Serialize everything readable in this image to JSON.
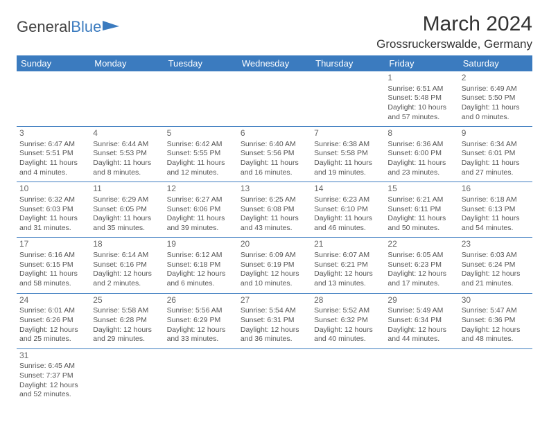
{
  "logo": {
    "text1": "General",
    "text2": "Blue"
  },
  "title": "March 2024",
  "location": "Grossruckerswalde, Germany",
  "colors": {
    "header_bg": "#3b7bbf",
    "header_fg": "#ffffff",
    "border": "#3b7bbf",
    "text": "#555555",
    "title": "#333333",
    "background": "#ffffff"
  },
  "weekdays": [
    "Sunday",
    "Monday",
    "Tuesday",
    "Wednesday",
    "Thursday",
    "Friday",
    "Saturday"
  ],
  "weeks": [
    [
      null,
      null,
      null,
      null,
      null,
      {
        "d": "1",
        "sr": "Sunrise: 6:51 AM",
        "ss": "Sunset: 5:48 PM",
        "dl1": "Daylight: 10 hours",
        "dl2": "and 57 minutes."
      },
      {
        "d": "2",
        "sr": "Sunrise: 6:49 AM",
        "ss": "Sunset: 5:50 PM",
        "dl1": "Daylight: 11 hours",
        "dl2": "and 0 minutes."
      }
    ],
    [
      {
        "d": "3",
        "sr": "Sunrise: 6:47 AM",
        "ss": "Sunset: 5:51 PM",
        "dl1": "Daylight: 11 hours",
        "dl2": "and 4 minutes."
      },
      {
        "d": "4",
        "sr": "Sunrise: 6:44 AM",
        "ss": "Sunset: 5:53 PM",
        "dl1": "Daylight: 11 hours",
        "dl2": "and 8 minutes."
      },
      {
        "d": "5",
        "sr": "Sunrise: 6:42 AM",
        "ss": "Sunset: 5:55 PM",
        "dl1": "Daylight: 11 hours",
        "dl2": "and 12 minutes."
      },
      {
        "d": "6",
        "sr": "Sunrise: 6:40 AM",
        "ss": "Sunset: 5:56 PM",
        "dl1": "Daylight: 11 hours",
        "dl2": "and 16 minutes."
      },
      {
        "d": "7",
        "sr": "Sunrise: 6:38 AM",
        "ss": "Sunset: 5:58 PM",
        "dl1": "Daylight: 11 hours",
        "dl2": "and 19 minutes."
      },
      {
        "d": "8",
        "sr": "Sunrise: 6:36 AM",
        "ss": "Sunset: 6:00 PM",
        "dl1": "Daylight: 11 hours",
        "dl2": "and 23 minutes."
      },
      {
        "d": "9",
        "sr": "Sunrise: 6:34 AM",
        "ss": "Sunset: 6:01 PM",
        "dl1": "Daylight: 11 hours",
        "dl2": "and 27 minutes."
      }
    ],
    [
      {
        "d": "10",
        "sr": "Sunrise: 6:32 AM",
        "ss": "Sunset: 6:03 PM",
        "dl1": "Daylight: 11 hours",
        "dl2": "and 31 minutes."
      },
      {
        "d": "11",
        "sr": "Sunrise: 6:29 AM",
        "ss": "Sunset: 6:05 PM",
        "dl1": "Daylight: 11 hours",
        "dl2": "and 35 minutes."
      },
      {
        "d": "12",
        "sr": "Sunrise: 6:27 AM",
        "ss": "Sunset: 6:06 PM",
        "dl1": "Daylight: 11 hours",
        "dl2": "and 39 minutes."
      },
      {
        "d": "13",
        "sr": "Sunrise: 6:25 AM",
        "ss": "Sunset: 6:08 PM",
        "dl1": "Daylight: 11 hours",
        "dl2": "and 43 minutes."
      },
      {
        "d": "14",
        "sr": "Sunrise: 6:23 AM",
        "ss": "Sunset: 6:10 PM",
        "dl1": "Daylight: 11 hours",
        "dl2": "and 46 minutes."
      },
      {
        "d": "15",
        "sr": "Sunrise: 6:21 AM",
        "ss": "Sunset: 6:11 PM",
        "dl1": "Daylight: 11 hours",
        "dl2": "and 50 minutes."
      },
      {
        "d": "16",
        "sr": "Sunrise: 6:18 AM",
        "ss": "Sunset: 6:13 PM",
        "dl1": "Daylight: 11 hours",
        "dl2": "and 54 minutes."
      }
    ],
    [
      {
        "d": "17",
        "sr": "Sunrise: 6:16 AM",
        "ss": "Sunset: 6:15 PM",
        "dl1": "Daylight: 11 hours",
        "dl2": "and 58 minutes."
      },
      {
        "d": "18",
        "sr": "Sunrise: 6:14 AM",
        "ss": "Sunset: 6:16 PM",
        "dl1": "Daylight: 12 hours",
        "dl2": "and 2 minutes."
      },
      {
        "d": "19",
        "sr": "Sunrise: 6:12 AM",
        "ss": "Sunset: 6:18 PM",
        "dl1": "Daylight: 12 hours",
        "dl2": "and 6 minutes."
      },
      {
        "d": "20",
        "sr": "Sunrise: 6:09 AM",
        "ss": "Sunset: 6:19 PM",
        "dl1": "Daylight: 12 hours",
        "dl2": "and 10 minutes."
      },
      {
        "d": "21",
        "sr": "Sunrise: 6:07 AM",
        "ss": "Sunset: 6:21 PM",
        "dl1": "Daylight: 12 hours",
        "dl2": "and 13 minutes."
      },
      {
        "d": "22",
        "sr": "Sunrise: 6:05 AM",
        "ss": "Sunset: 6:23 PM",
        "dl1": "Daylight: 12 hours",
        "dl2": "and 17 minutes."
      },
      {
        "d": "23",
        "sr": "Sunrise: 6:03 AM",
        "ss": "Sunset: 6:24 PM",
        "dl1": "Daylight: 12 hours",
        "dl2": "and 21 minutes."
      }
    ],
    [
      {
        "d": "24",
        "sr": "Sunrise: 6:01 AM",
        "ss": "Sunset: 6:26 PM",
        "dl1": "Daylight: 12 hours",
        "dl2": "and 25 minutes."
      },
      {
        "d": "25",
        "sr": "Sunrise: 5:58 AM",
        "ss": "Sunset: 6:28 PM",
        "dl1": "Daylight: 12 hours",
        "dl2": "and 29 minutes."
      },
      {
        "d": "26",
        "sr": "Sunrise: 5:56 AM",
        "ss": "Sunset: 6:29 PM",
        "dl1": "Daylight: 12 hours",
        "dl2": "and 33 minutes."
      },
      {
        "d": "27",
        "sr": "Sunrise: 5:54 AM",
        "ss": "Sunset: 6:31 PM",
        "dl1": "Daylight: 12 hours",
        "dl2": "and 36 minutes."
      },
      {
        "d": "28",
        "sr": "Sunrise: 5:52 AM",
        "ss": "Sunset: 6:32 PM",
        "dl1": "Daylight: 12 hours",
        "dl2": "and 40 minutes."
      },
      {
        "d": "29",
        "sr": "Sunrise: 5:49 AM",
        "ss": "Sunset: 6:34 PM",
        "dl1": "Daylight: 12 hours",
        "dl2": "and 44 minutes."
      },
      {
        "d": "30",
        "sr": "Sunrise: 5:47 AM",
        "ss": "Sunset: 6:36 PM",
        "dl1": "Daylight: 12 hours",
        "dl2": "and 48 minutes."
      }
    ],
    [
      {
        "d": "31",
        "sr": "Sunrise: 6:45 AM",
        "ss": "Sunset: 7:37 PM",
        "dl1": "Daylight: 12 hours",
        "dl2": "and 52 minutes."
      },
      null,
      null,
      null,
      null,
      null,
      null
    ]
  ]
}
